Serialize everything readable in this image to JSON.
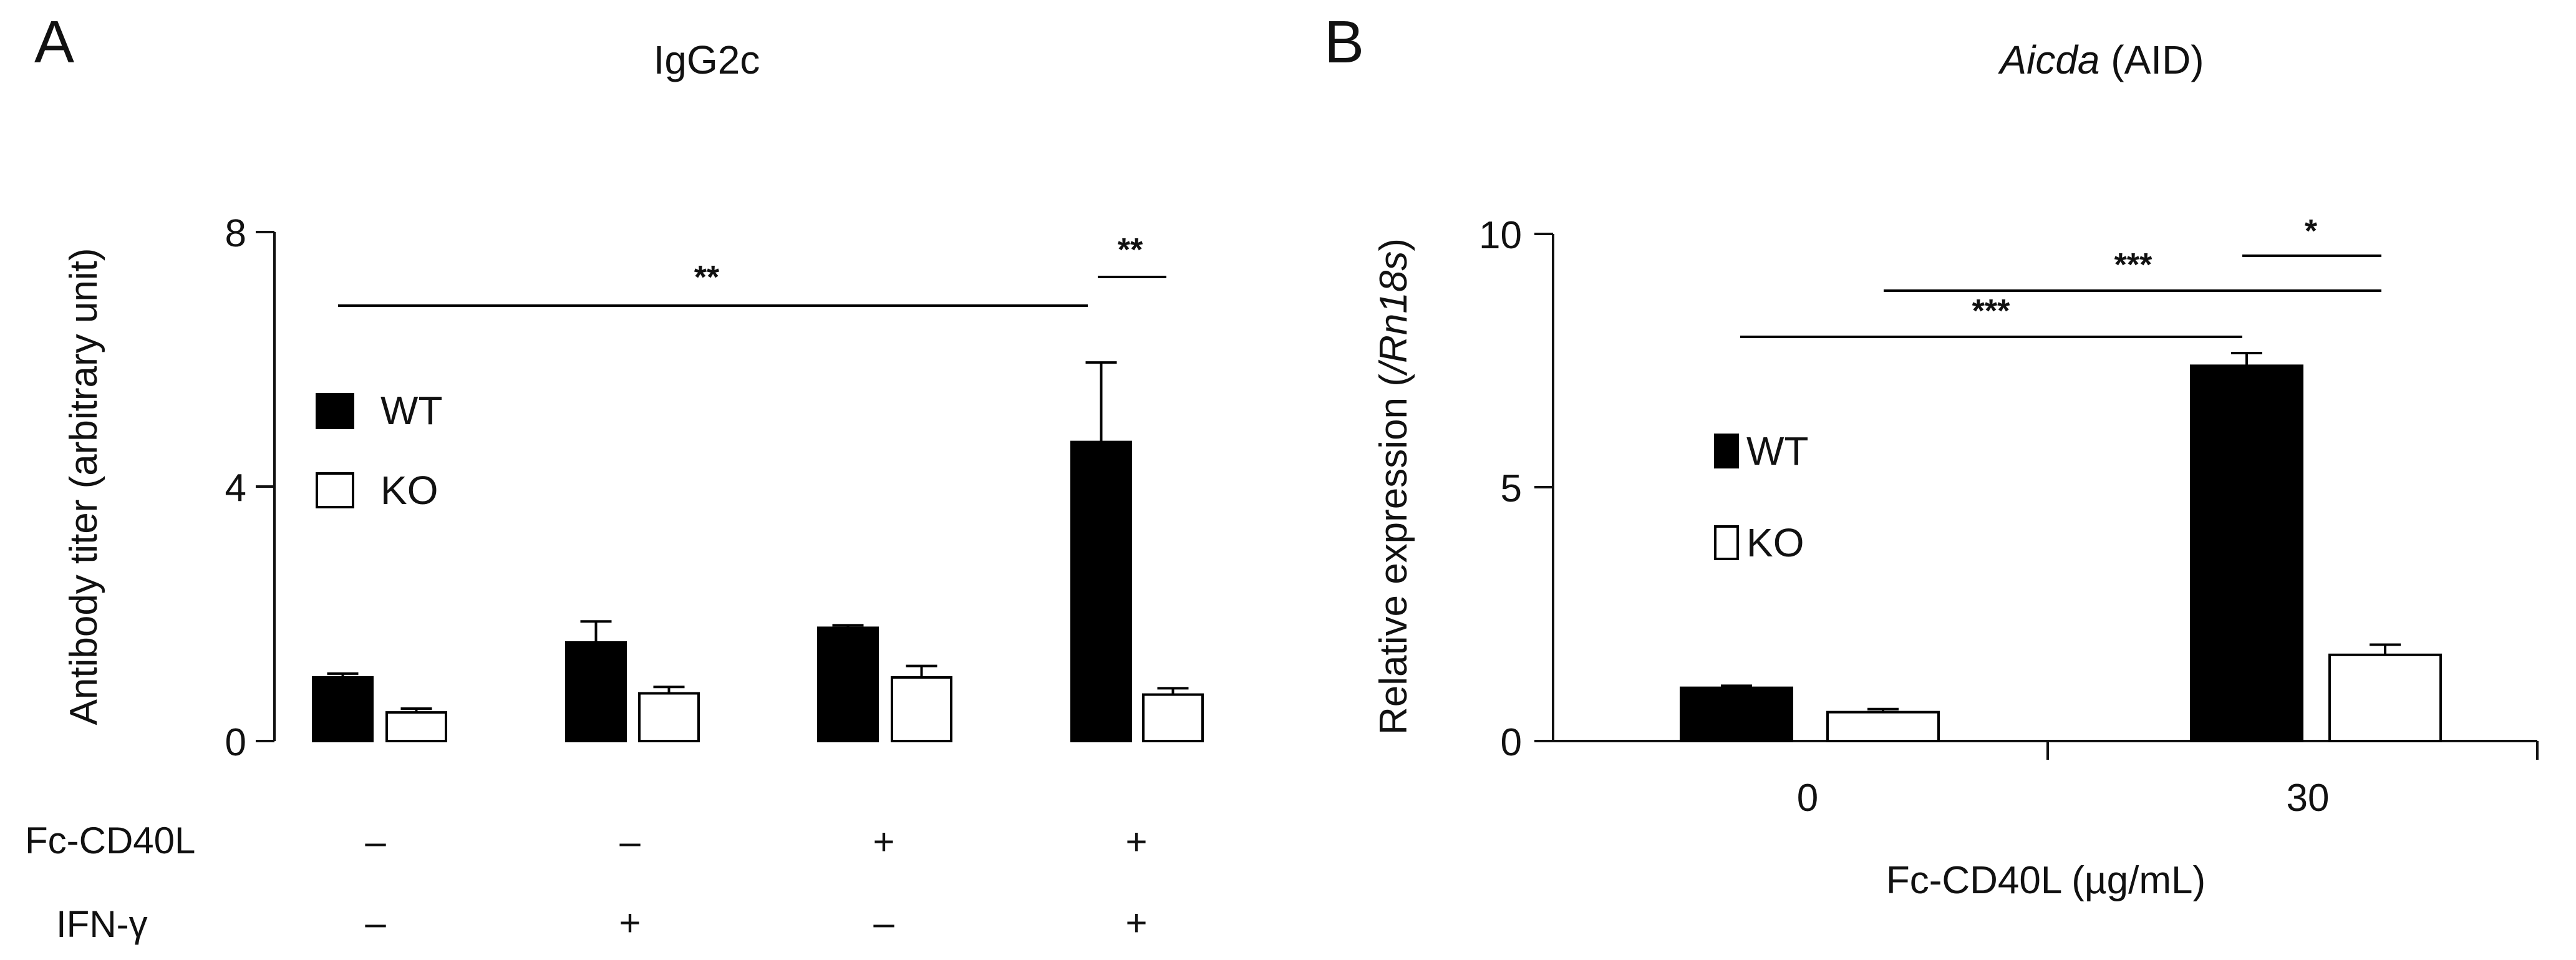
{
  "chart_data": [
    {
      "panel": "A",
      "type": "bar",
      "title": "IgG2c",
      "xlabel": "",
      "ylabel": "Antibody titer (arbitrary unit)",
      "ylim": [
        0,
        8
      ],
      "yticks": [
        "0",
        "4",
        "8"
      ],
      "groups": 4,
      "series": [
        {
          "name": "WT",
          "fill": "#000000",
          "values": [
            1.0,
            1.55,
            1.78,
            4.7
          ],
          "errors": [
            0.06,
            0.33,
            0.04,
            1.25
          ]
        },
        {
          "name": "KO",
          "fill": "#ffffff",
          "values": [
            0.45,
            0.75,
            1.0,
            0.73
          ],
          "errors": [
            0.06,
            0.1,
            0.18,
            0.1
          ]
        }
      ],
      "conditions": [
        {
          "label": "Fc-CD40L",
          "values": [
            "–",
            "–",
            "+",
            "+"
          ]
        },
        {
          "label": "IFN-γ",
          "values": [
            "–",
            "+",
            "–",
            "+"
          ]
        }
      ],
      "significance": [
        {
          "from": "WT-1",
          "to": "WT-4",
          "label": "**"
        },
        {
          "from": "WT-4",
          "to": "KO-4",
          "label": "**"
        }
      ],
      "legend": "upper-left",
      "grid": false
    },
    {
      "panel": "B",
      "type": "bar",
      "title_italic": "Aicda",
      "title_rest": " (AID)",
      "xlabel": "Fc-CD40L (µg/mL)",
      "ylabel_pre": "Relative expression (",
      "ylabel_italic": "/Rn18s",
      "ylabel_post": ")",
      "ylim": [
        0,
        10
      ],
      "yticks": [
        "0",
        "5",
        "10"
      ],
      "categories": [
        "0",
        "30"
      ],
      "series": [
        {
          "name": "WT",
          "fill": "#000000",
          "values": [
            1.05,
            7.4
          ],
          "errors": [
            0.04,
            0.25
          ]
        },
        {
          "name": "KO",
          "fill": "#ffffff",
          "values": [
            0.57,
            1.7
          ],
          "errors": [
            0.06,
            0.2
          ]
        }
      ],
      "significance": [
        {
          "from": "WT-0",
          "to": "WT-30",
          "label": "***"
        },
        {
          "from": "KO-0",
          "to": "KO-30",
          "label": "***"
        },
        {
          "from": "WT-30",
          "to": "KO-30",
          "label": "*"
        }
      ],
      "legend": "middle-left",
      "grid": false
    }
  ]
}
